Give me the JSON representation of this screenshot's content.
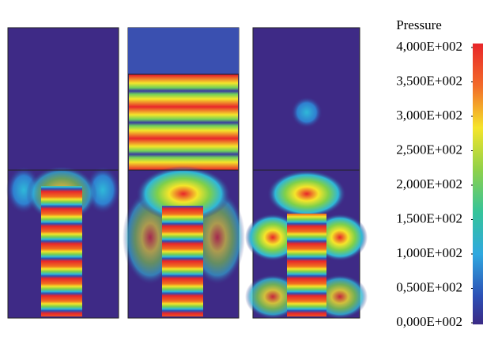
{
  "colorbar": {
    "title": "Pressure",
    "lim": [
      0,
      400
    ],
    "ticks": [
      {
        "value": 400,
        "label": "4,000E+002"
      },
      {
        "value": 350,
        "label": "3,500E+002"
      },
      {
        "value": 300,
        "label": "3,000E+002"
      },
      {
        "value": 250,
        "label": "2,500E+002"
      },
      {
        "value": 200,
        "label": "2,000E+002"
      },
      {
        "value": 150,
        "label": "1,500E+002"
      },
      {
        "value": 100,
        "label": "1,000E+002"
      },
      {
        "value": 50,
        "label": "0,500E+002"
      },
      {
        "value": 0,
        "label": "0,000E+002"
      }
    ]
  }
}
